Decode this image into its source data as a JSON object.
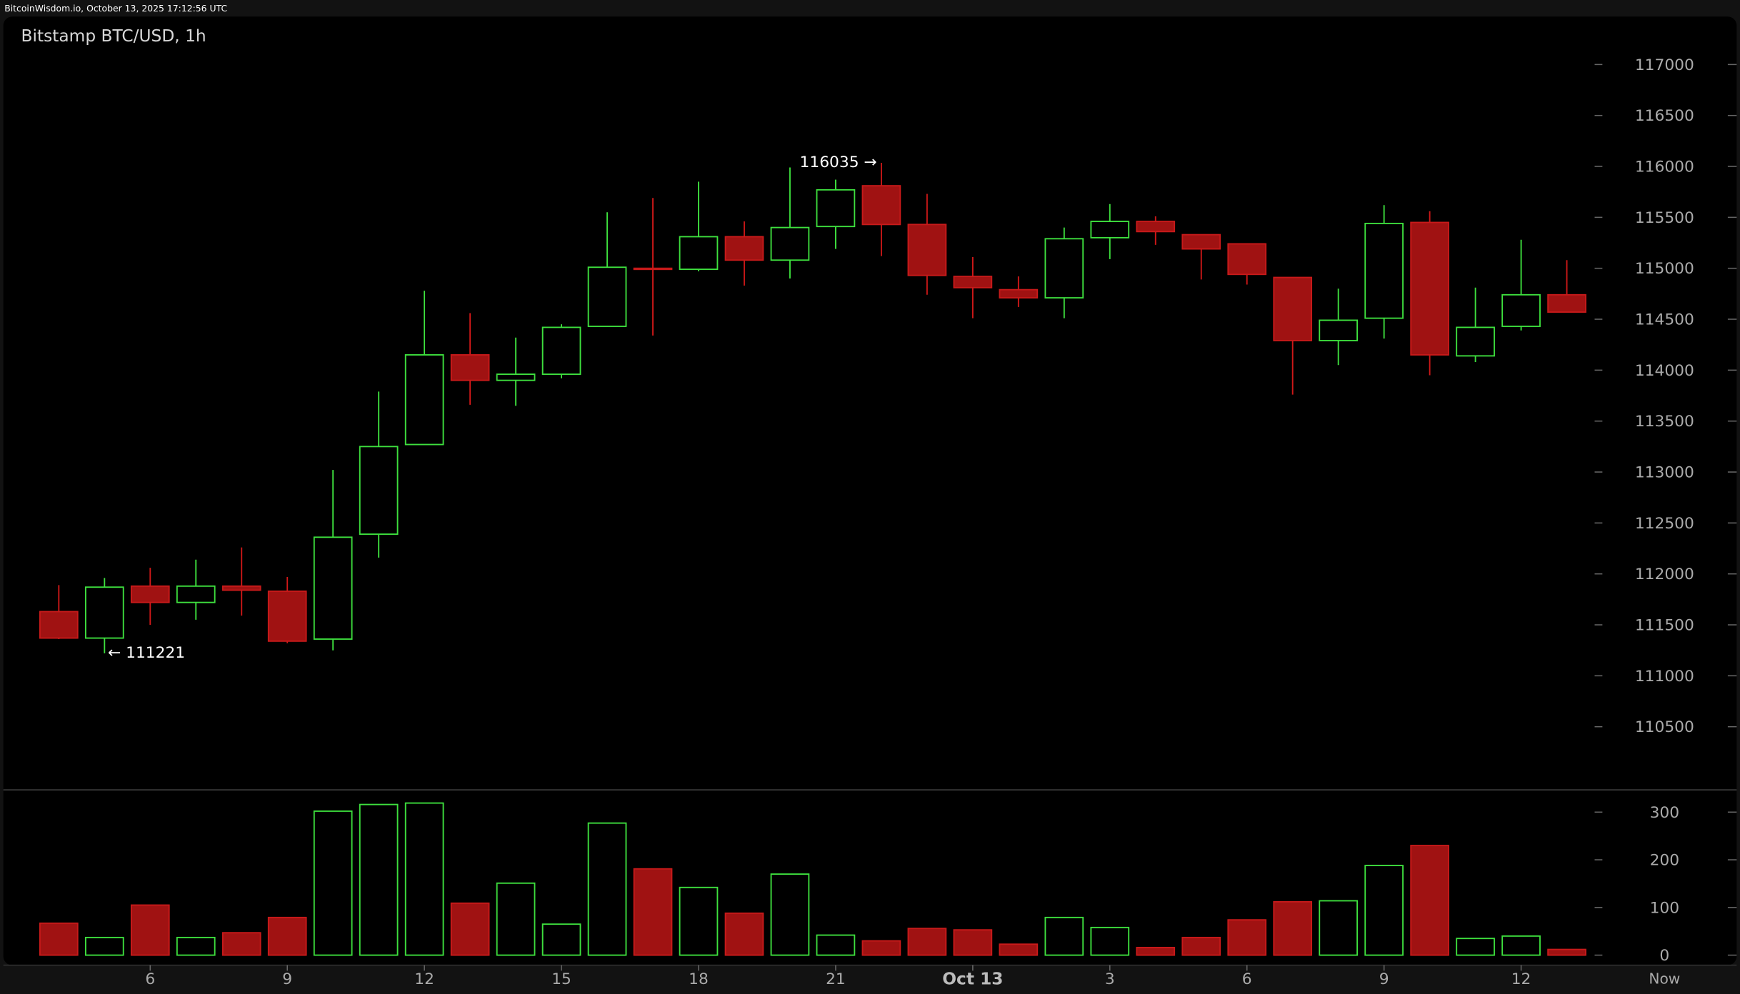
{
  "header": "BitcoinWisdom.io, October 13, 2025 17:12:56 UTC",
  "chart_data": {
    "type": "candlestick",
    "title": "Bitstamp BTC/USD, 1h",
    "categories": [
      null,
      null,
      "6",
      null,
      null,
      "9",
      null,
      null,
      "12",
      null,
      null,
      "15",
      null,
      null,
      "18",
      null,
      null,
      "21",
      null,
      null,
      "Oct 13",
      null,
      null,
      "3",
      null,
      null,
      "6",
      null,
      null,
      "9",
      null,
      null,
      "12",
      null
    ],
    "x_end_label": "Now",
    "open": [
      111630,
      111370,
      111880,
      111720,
      111880,
      111830,
      111360,
      112390,
      113270,
      114150,
      113900,
      113960,
      114430,
      115000,
      114990,
      115310,
      115080,
      115410,
      115810,
      115430,
      114920,
      114790,
      114710,
      115300,
      115460,
      115330,
      115240,
      114910,
      114290,
      114510,
      115450,
      114140,
      114430,
      114740
    ],
    "high": [
      111890,
      111960,
      112060,
      112140,
      112260,
      111970,
      113020,
      113790,
      114780,
      114560,
      114320,
      114450,
      115550,
      115690,
      115850,
      115460,
      115990,
      115870,
      116035,
      115730,
      115110,
      114920,
      115400,
      115630,
      115510,
      115330,
      115240,
      114910,
      114800,
      115620,
      115560,
      114810,
      115280,
      115080
    ],
    "low": [
      111360,
      111221,
      111500,
      111550,
      111590,
      111320,
      111250,
      112160,
      113270,
      113660,
      113650,
      113920,
      114430,
      114340,
      114970,
      114830,
      114900,
      115190,
      115120,
      114740,
      114510,
      114620,
      114510,
      115090,
      115230,
      114890,
      114840,
      113760,
      114050,
      114310,
      113950,
      114080,
      114390,
      114570
    ],
    "close": [
      111370,
      111870,
      111720,
      111880,
      111840,
      111340,
      112360,
      113250,
      114150,
      113900,
      113960,
      114420,
      115010,
      114990,
      115310,
      115080,
      115400,
      115770,
      115430,
      114930,
      114810,
      114710,
      115290,
      115460,
      115360,
      115190,
      114940,
      114290,
      114490,
      115440,
      114150,
      114420,
      114740,
      114570
    ],
    "volume": [
      67,
      37,
      105,
      37,
      47,
      79,
      302,
      316,
      319,
      109,
      151,
      65,
      277,
      181,
      142,
      88,
      170,
      42,
      30,
      56,
      53,
      23,
      79,
      58,
      16,
      37,
      74,
      112,
      114,
      188,
      230,
      35,
      40,
      12
    ],
    "up_color": "#3ee03e",
    "down_color": "#a01212",
    "ylim": [
      109880,
      117470
    ],
    "yticks": [
      110500,
      111000,
      111500,
      112000,
      112500,
      113000,
      113500,
      114000,
      114500,
      115000,
      115500,
      116000,
      116500,
      117000
    ],
    "volume_ylim": [
      -21,
      342
    ],
    "volume_yticks": [
      0,
      100,
      200,
      300
    ],
    "max_label": "116035 →",
    "min_label": "← 111221"
  }
}
